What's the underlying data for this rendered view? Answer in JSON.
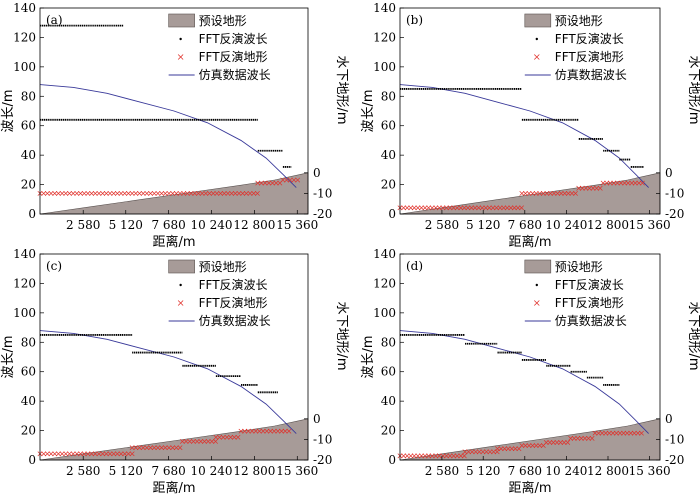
{
  "labels": {
    "xlabel": "距离/m",
    "ylabel_left": "波长/m",
    "ylabel_right": "水下地形/m",
    "legend": [
      "预设地形",
      "FFT反演波长",
      "FFT反演地形",
      "仿真数据波长"
    ]
  },
  "colors": {
    "terrain_fill": "#a79b98",
    "fft_wavelength": "#000000",
    "fft_terrain": "#e0302a",
    "simulated": "#3a3a9a"
  },
  "chart_data": [
    {
      "type": "line",
      "panel": "(a)",
      "x_ticks": [
        "2 580",
        "5 120",
        "7 680",
        "10 240",
        "12 800",
        "15 360"
      ],
      "x_tick_values": [
        2580,
        5120,
        7680,
        10240,
        12800,
        15360
      ],
      "xlim": [
        0,
        16000
      ],
      "ylim_left": [
        0,
        140
      ],
      "y_ticks_left": [
        0,
        20,
        40,
        60,
        80,
        100,
        120,
        140
      ],
      "ylim_right": [
        -20,
        80
      ],
      "y_ticks_right": [
        0,
        -10,
        -20
      ],
      "terrain": {
        "x": [
          0,
          3000,
          6000,
          9000,
          12000,
          14000,
          16000
        ],
        "depth": [
          -20,
          -16.5,
          -13,
          -9.5,
          -6,
          -3.5,
          0
        ]
      },
      "simulated": {
        "x": [
          0,
          2000,
          4000,
          6000,
          8000,
          10000,
          12000,
          13500,
          14500,
          15300
        ],
        "y": [
          88,
          86,
          82,
          76,
          70,
          62,
          50,
          38,
          27,
          18
        ]
      },
      "fft_wavelength": [
        {
          "x_start": 0,
          "x_end": 5000,
          "y": 128
        },
        {
          "x_start": 0,
          "x_end": 13000,
          "y": 64
        },
        {
          "x_start": 13000,
          "x_end": 14500,
          "y": 43
        },
        {
          "x_start": 14500,
          "x_end": 15000,
          "y": 32
        }
      ],
      "fft_terrain": [
        {
          "x_start": 0,
          "x_end": 13000,
          "depth": -10
        },
        {
          "x_start": 13000,
          "x_end": 14500,
          "depth": -5
        },
        {
          "x_start": 14500,
          "x_end": 15500,
          "depth": -3.5
        }
      ]
    },
    {
      "type": "line",
      "panel": "(b)",
      "x_ticks": [
        "2 580",
        "5 120",
        "7 680",
        "10 240",
        "12 800",
        "15 360"
      ],
      "x_tick_values": [
        2580,
        5120,
        7680,
        10240,
        12800,
        15360
      ],
      "xlim": [
        0,
        16000
      ],
      "ylim_left": [
        0,
        140
      ],
      "y_ticks_left": [
        0,
        20,
        40,
        60,
        80,
        100,
        120,
        140
      ],
      "ylim_right": [
        -20,
        80
      ],
      "y_ticks_right": [
        0,
        -10,
        -20
      ],
      "terrain": {
        "x": [
          0,
          3000,
          6000,
          9000,
          12000,
          14000,
          16000
        ],
        "depth": [
          -20,
          -16.5,
          -13,
          -9.5,
          -6,
          -3.5,
          0
        ]
      },
      "simulated": {
        "x": [
          0,
          2000,
          4000,
          6000,
          8000,
          10000,
          12000,
          13500,
          14500,
          15300
        ],
        "y": [
          88,
          86,
          82,
          76,
          70,
          62,
          50,
          38,
          27,
          18
        ]
      },
      "fft_wavelength": [
        {
          "x_start": 0,
          "x_end": 7500,
          "y": 85
        },
        {
          "x_start": 7500,
          "x_end": 11000,
          "y": 64
        },
        {
          "x_start": 11000,
          "x_end": 12500,
          "y": 51
        },
        {
          "x_start": 12500,
          "x_end": 13500,
          "y": 43
        },
        {
          "x_start": 13500,
          "x_end": 14200,
          "y": 37
        },
        {
          "x_start": 14200,
          "x_end": 15000,
          "y": 32
        }
      ],
      "fft_terrain": [
        {
          "x_start": 0,
          "x_end": 7500,
          "depth": -17
        },
        {
          "x_start": 7500,
          "x_end": 11000,
          "depth": -10
        },
        {
          "x_start": 11000,
          "x_end": 12500,
          "depth": -7.5
        },
        {
          "x_start": 12500,
          "x_end": 15000,
          "depth": -5
        }
      ]
    },
    {
      "type": "line",
      "panel": "(c)",
      "x_ticks": [
        "2 580",
        "5 120",
        "7 680",
        "10 240",
        "12 800",
        "15 360"
      ],
      "x_tick_values": [
        2580,
        5120,
        7680,
        10240,
        12800,
        15360
      ],
      "xlim": [
        0,
        16000
      ],
      "ylim_left": [
        0,
        140
      ],
      "y_ticks_left": [
        0,
        20,
        40,
        60,
        80,
        100,
        120,
        140
      ],
      "ylim_right": [
        -20,
        80
      ],
      "y_ticks_right": [
        0,
        -10,
        -20
      ],
      "terrain": {
        "x": [
          0,
          3000,
          6000,
          9000,
          12000,
          14000,
          16000
        ],
        "depth": [
          -20,
          -16.5,
          -13,
          -9.5,
          -6,
          -3.5,
          0
        ]
      },
      "simulated": {
        "x": [
          0,
          2000,
          4000,
          6000,
          8000,
          10000,
          12000,
          13500,
          14500,
          15300
        ],
        "y": [
          88,
          86,
          82,
          76,
          70,
          62,
          50,
          38,
          27,
          18
        ]
      },
      "fft_wavelength": [
        {
          "x_start": 0,
          "x_end": 5500,
          "y": 85
        },
        {
          "x_start": 5500,
          "x_end": 8500,
          "y": 73
        },
        {
          "x_start": 8500,
          "x_end": 10500,
          "y": 64
        },
        {
          "x_start": 10500,
          "x_end": 12000,
          "y": 57
        },
        {
          "x_start": 12000,
          "x_end": 13000,
          "y": 51
        },
        {
          "x_start": 13000,
          "x_end": 14200,
          "y": 46
        }
      ],
      "fft_terrain": [
        {
          "x_start": 0,
          "x_end": 5500,
          "depth": -17
        },
        {
          "x_start": 5500,
          "x_end": 8500,
          "depth": -14
        },
        {
          "x_start": 8500,
          "x_end": 10500,
          "depth": -11
        },
        {
          "x_start": 10500,
          "x_end": 12000,
          "depth": -9
        },
        {
          "x_start": 12000,
          "x_end": 15000,
          "depth": -6
        }
      ]
    },
    {
      "type": "line",
      "panel": "(d)",
      "x_ticks": [
        "2 580",
        "5 120",
        "7 680",
        "10 240",
        "12 800",
        "15 360"
      ],
      "x_tick_values": [
        2580,
        5120,
        7680,
        10240,
        12800,
        15360
      ],
      "xlim": [
        0,
        16000
      ],
      "ylim_left": [
        0,
        140
      ],
      "y_ticks_left": [
        0,
        20,
        40,
        60,
        80,
        100,
        120,
        140
      ],
      "ylim_right": [
        -20,
        80
      ],
      "y_ticks_right": [
        0,
        -10,
        -20
      ],
      "terrain": {
        "x": [
          0,
          3000,
          6000,
          9000,
          12000,
          14000,
          16000
        ],
        "depth": [
          -20,
          -16.5,
          -13,
          -9.5,
          -6,
          -3.5,
          0
        ]
      },
      "simulated": {
        "x": [
          0,
          2000,
          4000,
          6000,
          8000,
          10000,
          12000,
          13500,
          14500,
          15300
        ],
        "y": [
          88,
          86,
          82,
          76,
          70,
          62,
          50,
          38,
          27,
          18
        ]
      },
      "fft_wavelength": [
        {
          "x_start": 0,
          "x_end": 4000,
          "y": 85
        },
        {
          "x_start": 4000,
          "x_end": 6000,
          "y": 79
        },
        {
          "x_start": 6000,
          "x_end": 7500,
          "y": 73
        },
        {
          "x_start": 7500,
          "x_end": 9000,
          "y": 68
        },
        {
          "x_start": 9000,
          "x_end": 10500,
          "y": 64
        },
        {
          "x_start": 10500,
          "x_end": 11500,
          "y": 60
        },
        {
          "x_start": 11500,
          "x_end": 12500,
          "y": 56
        },
        {
          "x_start": 12500,
          "x_end": 13500,
          "y": 51
        }
      ],
      "fft_terrain": [
        {
          "x_start": 0,
          "x_end": 4000,
          "depth": -18
        },
        {
          "x_start": 4000,
          "x_end": 6000,
          "depth": -16
        },
        {
          "x_start": 6000,
          "x_end": 7500,
          "depth": -14.5
        },
        {
          "x_start": 7500,
          "x_end": 9000,
          "depth": -13
        },
        {
          "x_start": 9000,
          "x_end": 10500,
          "depth": -11.5
        },
        {
          "x_start": 10500,
          "x_end": 12000,
          "depth": -9.5
        },
        {
          "x_start": 12000,
          "x_end": 15000,
          "depth": -7
        }
      ]
    }
  ]
}
